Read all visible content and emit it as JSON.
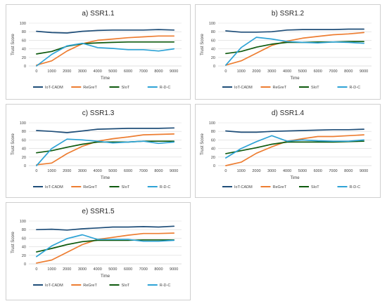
{
  "colors": {
    "IoT-CADM": "#1f4e79",
    "ReGreT": "#ed7d31",
    "SIoT": "#0e5a0e",
    "R-D-C": "#2ea3d6",
    "grid": "#d9d9d9",
    "border": "#cfcfcf"
  },
  "chart_data": [
    {
      "type": "line",
      "title": "a) SSR1.1",
      "xlabel": "Time",
      "ylabel": "Trust Score",
      "ylim": [
        0,
        100
      ],
      "yticks": [
        0,
        20,
        40,
        60,
        80,
        100
      ],
      "categories": [
        "0",
        "1000",
        "2000",
        "3000",
        "4000",
        "5000",
        "6000",
        "7000",
        "8000",
        "9000"
      ],
      "series": [
        {
          "name": "IoT-CADM",
          "values": [
            81,
            78,
            77,
            81,
            83,
            84,
            84,
            84,
            85,
            84
          ]
        },
        {
          "name": "ReGreT",
          "values": [
            2,
            12,
            35,
            52,
            60,
            63,
            66,
            68,
            70,
            70
          ]
        },
        {
          "name": "SIoT",
          "values": [
            28,
            34,
            46,
            52,
            54,
            55,
            56,
            56,
            56,
            56
          ]
        },
        {
          "name": "R-D-C",
          "values": [
            0,
            27,
            47,
            53,
            43,
            41,
            38,
            38,
            35,
            40
          ]
        }
      ],
      "grid": true,
      "legend": "bottom"
    },
    {
      "type": "line",
      "title": "b) SSR1.2",
      "xlabel": "Time",
      "ylabel": "Trust Score",
      "ylim": [
        0,
        100
      ],
      "yticks": [
        0,
        20,
        40,
        60,
        80,
        100
      ],
      "categories": [
        "0",
        "1000",
        "2000",
        "3000",
        "4000",
        "5000",
        "6000",
        "7000",
        "8000",
        "9000"
      ],
      "series": [
        {
          "name": "IoT-CADM",
          "values": [
            82,
            79,
            79,
            80,
            84,
            85,
            85,
            85,
            86,
            86
          ]
        },
        {
          "name": "ReGreT",
          "values": [
            2,
            12,
            30,
            48,
            58,
            65,
            69,
            73,
            75,
            78
          ]
        },
        {
          "name": "SIoT",
          "values": [
            29,
            34,
            44,
            51,
            55,
            55,
            56,
            56,
            57,
            57
          ]
        },
        {
          "name": "R-D-C",
          "values": [
            2,
            43,
            67,
            63,
            57,
            55,
            54,
            56,
            55,
            53
          ]
        }
      ],
      "grid": true,
      "legend": "bottom"
    },
    {
      "type": "line",
      "title": "c) SSR1.3",
      "xlabel": "Time",
      "ylabel": "Trust Score",
      "ylim": [
        0,
        100
      ],
      "yticks": [
        0,
        20,
        40,
        60,
        80,
        100
      ],
      "categories": [
        "0",
        "1000",
        "2000",
        "3000",
        "4000",
        "5000",
        "6000",
        "7000",
        "8000",
        "9000"
      ],
      "series": [
        {
          "name": "IoT-CADM",
          "values": [
            82,
            80,
            77,
            81,
            85,
            86,
            87,
            87,
            87,
            88
          ]
        },
        {
          "name": "ReGreT",
          "values": [
            2,
            6,
            28,
            45,
            57,
            63,
            67,
            72,
            73,
            74
          ]
        },
        {
          "name": "SIoT",
          "values": [
            30,
            35,
            43,
            50,
            55,
            55,
            55,
            57,
            57,
            57
          ]
        },
        {
          "name": "R-D-C",
          "values": [
            0,
            40,
            62,
            60,
            57,
            53,
            55,
            57,
            52,
            55
          ]
        }
      ],
      "grid": true,
      "legend": "bottom"
    },
    {
      "type": "line",
      "title": "d) SSR1.4",
      "xlabel": "Time",
      "ylabel": "Trust Score",
      "ylim": [
        0,
        100
      ],
      "yticks": [
        0,
        20,
        40,
        60,
        80,
        100
      ],
      "categories": [
        "0",
        "1000",
        "2000",
        "3000",
        "4000",
        "5000",
        "6000",
        "7000",
        "8000",
        "9000"
      ],
      "series": [
        {
          "name": "IoT-CADM",
          "values": [
            81,
            78,
            78,
            80,
            81,
            82,
            83,
            84,
            84,
            85
          ]
        },
        {
          "name": "ReGreT",
          "values": [
            0,
            8,
            29,
            44,
            57,
            63,
            68,
            68,
            70,
            72
          ]
        },
        {
          "name": "SIoT",
          "values": [
            28,
            35,
            42,
            50,
            55,
            55,
            55,
            55,
            56,
            57
          ]
        },
        {
          "name": "R-D-C",
          "values": [
            18,
            40,
            56,
            70,
            57,
            60,
            58,
            57,
            57,
            60
          ]
        }
      ],
      "grid": true,
      "legend": "bottom"
    },
    {
      "type": "line",
      "title": "e) SSR1.5",
      "xlabel": "Time",
      "ylabel": "Trust Score",
      "ylim": [
        0,
        100
      ],
      "yticks": [
        0,
        20,
        40,
        60,
        80,
        100
      ],
      "categories": [
        "0",
        "1000",
        "2000",
        "3000",
        "4000",
        "5000",
        "6000",
        "7000",
        "8000",
        "9000"
      ],
      "series": [
        {
          "name": "IoT-CADM",
          "values": [
            80,
            81,
            79,
            82,
            84,
            86,
            86,
            87,
            86,
            88
          ]
        },
        {
          "name": "ReGreT",
          "values": [
            2,
            9,
            27,
            45,
            57,
            62,
            67,
            71,
            71,
            72
          ]
        },
        {
          "name": "SIoT",
          "values": [
            28,
            36,
            45,
            52,
            55,
            55,
            55,
            56,
            56,
            56
          ]
        },
        {
          "name": "R-D-C",
          "values": [
            17,
            42,
            59,
            68,
            57,
            57,
            57,
            53,
            53,
            55
          ]
        }
      ],
      "grid": true,
      "legend": "bottom"
    }
  ]
}
